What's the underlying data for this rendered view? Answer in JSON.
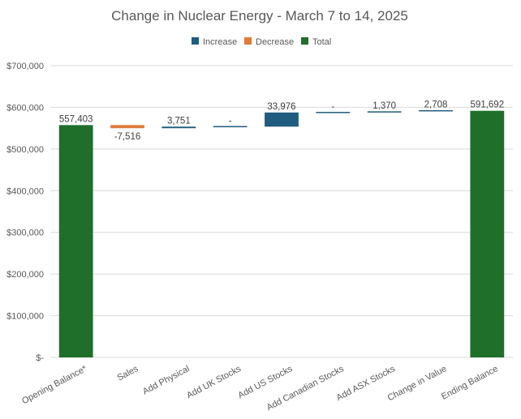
{
  "chart_data": {
    "type": "waterfall",
    "title": "Change in Nuclear Energy - March 7 to 14, 2025",
    "legend": {
      "placement": "top",
      "entries": [
        {
          "name": "Increase",
          "color": "#1f5c7f"
        },
        {
          "name": "Decrease",
          "color": "#e07b39"
        },
        {
          "name": "Total",
          "color": "#1f6f2a"
        }
      ]
    },
    "ylim": [
      0,
      700000
    ],
    "yticks": [
      0,
      100000,
      200000,
      300000,
      400000,
      500000,
      600000,
      700000
    ],
    "ytick_labels": [
      "$-",
      "$100,000",
      "$200,000",
      "$300,000",
      "$400,000",
      "$500,000",
      "$600,000",
      "$700,000"
    ],
    "grid": true,
    "points": [
      {
        "category": "Opening Balance*",
        "value": 557403,
        "kind": "total",
        "label": "557,403"
      },
      {
        "category": "Sales",
        "value": -7516,
        "kind": "decrease",
        "label": "-7,516"
      },
      {
        "category": "Add Physical",
        "value": 3751,
        "kind": "increase",
        "label": "3,751"
      },
      {
        "category": "Add UK Stocks",
        "value": 0,
        "kind": "increase",
        "label": "-"
      },
      {
        "category": "Add US Stocks",
        "value": 33976,
        "kind": "increase",
        "label": "33,976"
      },
      {
        "category": "Add  Canadian Stocks",
        "value": 0,
        "kind": "increase",
        "label": "-"
      },
      {
        "category": "Add ASX Stocks",
        "value": 1370,
        "kind": "increase",
        "label": "1,370"
      },
      {
        "category": "Change in Value",
        "value": 2708,
        "kind": "increase",
        "label": "2,708"
      },
      {
        "category": "Ending Balance",
        "value": 591692,
        "kind": "total",
        "label": "591,692"
      }
    ]
  }
}
